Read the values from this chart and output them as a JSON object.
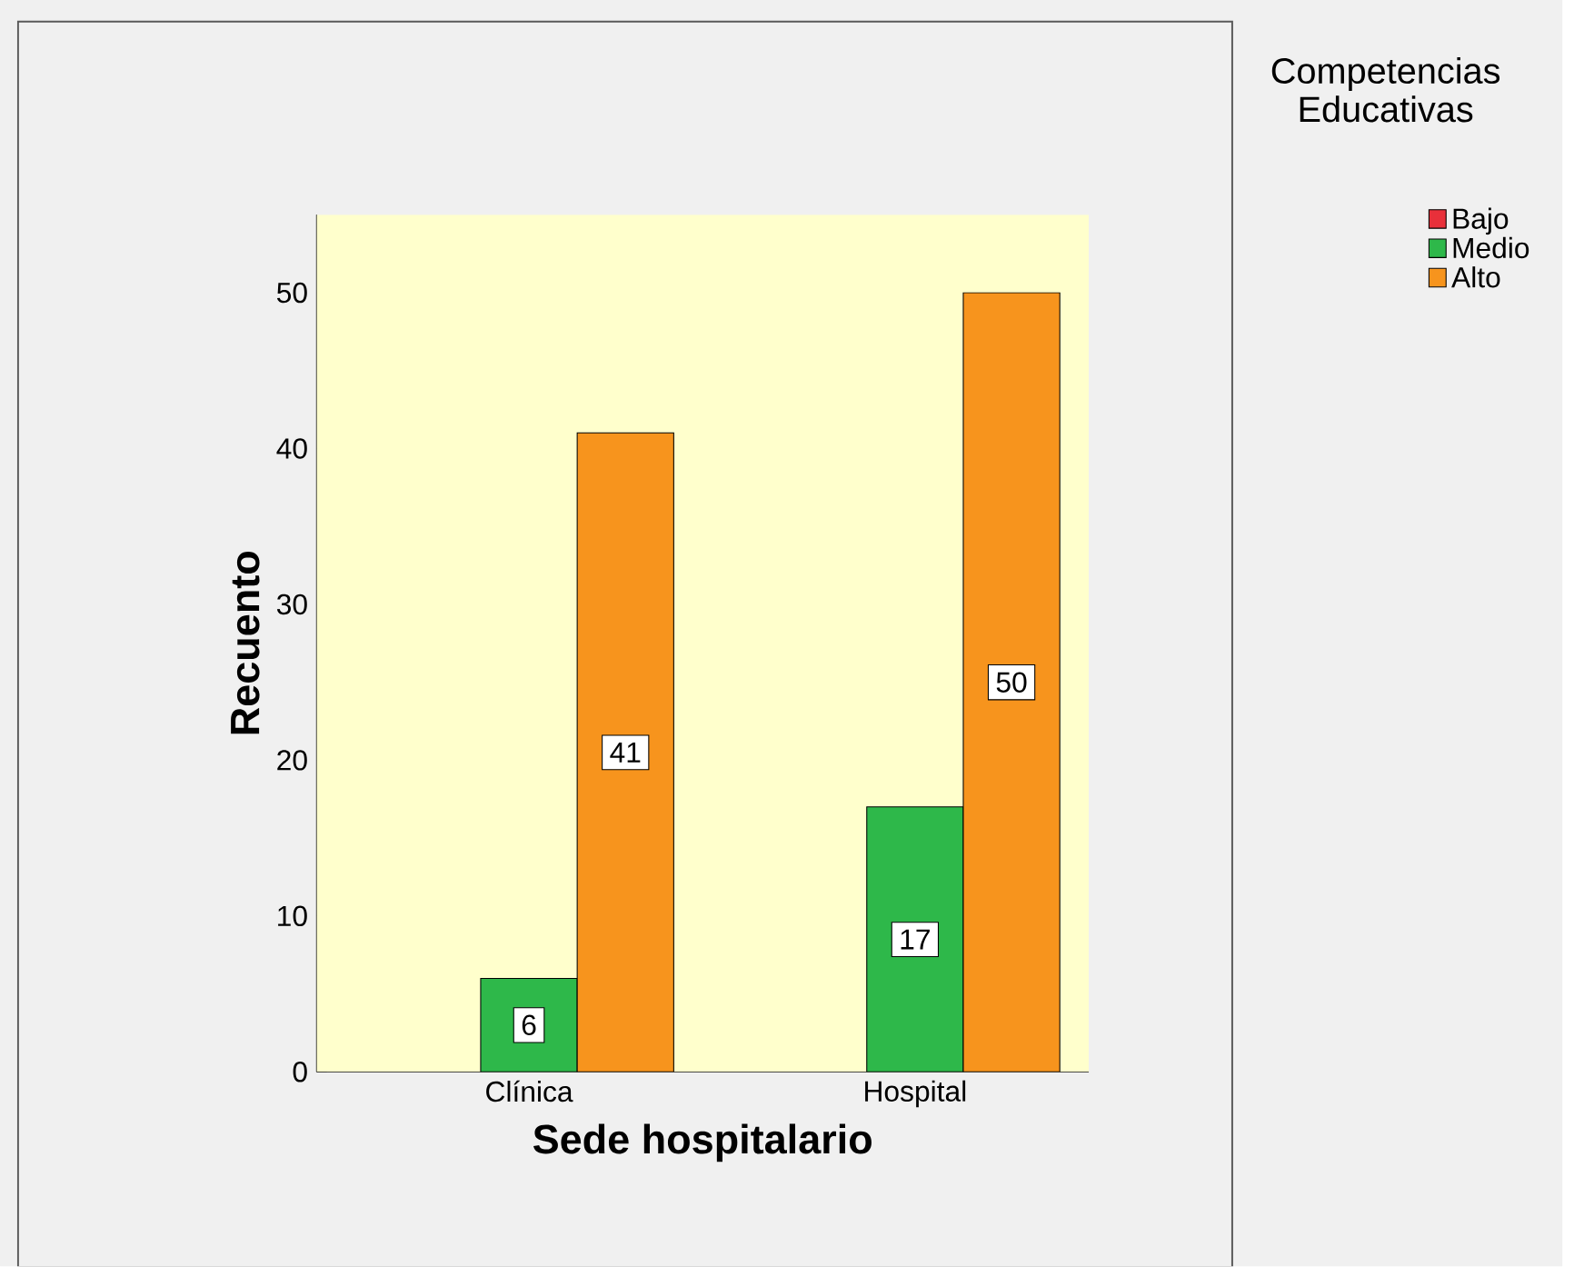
{
  "chart_data": {
    "type": "bar",
    "xlabel": "Sede hospitalario",
    "ylabel": "Recuento",
    "legend_title": "Competencias Educativas",
    "categories": [
      "Clínica",
      "Hospital"
    ],
    "series": [
      {
        "name": "Bajo",
        "color": "#e8303a",
        "values": [
          null,
          null
        ]
      },
      {
        "name": "Medio",
        "color": "#2eb84a",
        "values": [
          6,
          17
        ]
      },
      {
        "name": "Alto",
        "color": "#f7941d",
        "values": [
          41,
          50
        ]
      }
    ],
    "ylim": [
      0,
      55
    ],
    "yticks": [
      0,
      10,
      20,
      30,
      40,
      50
    ],
    "data_labels": true,
    "legend": "top right",
    "grid": false
  }
}
